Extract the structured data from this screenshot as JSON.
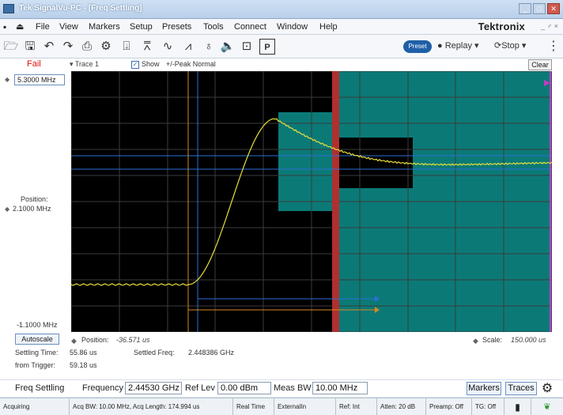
{
  "window": {
    "title": "Tek SignalVu-PC - [Freq Settling]",
    "controls": [
      "_",
      "□",
      "✕"
    ]
  },
  "menu": {
    "items": [
      "File",
      "View",
      "Markers",
      "Setup",
      "Presets",
      "Tools",
      "Connect",
      "Window",
      "Help"
    ],
    "brand": "Tektronix",
    "brand_controls": "_ ♂ ×"
  },
  "toolbar": {
    "icons": [
      "open-icon",
      "save-icon",
      "undo-icon",
      "redo-icon",
      "print-icon",
      "settings-icon",
      "marker-icon",
      "peak-icon",
      "trace-icon",
      "spectrum-icon",
      "color-icon",
      "audio-icon",
      "record-icon",
      "preset-panel-icon"
    ],
    "preset_label": "Preset",
    "replay_label": "● Replay ▾",
    "stop_label": "⟳Stop ▾",
    "more": "⋮"
  },
  "trace_bar": {
    "status": "Fail",
    "trace_select": "▾ Trace 1",
    "show_checked": "✓",
    "show_label": "Show",
    "detection": "+/-Peak Normal",
    "clear_label": "Clear"
  },
  "axis": {
    "top_value": "5.3000 MHz",
    "position_label": "Position:",
    "position_value": "2.1000 MHz",
    "bottom_value": "-1.1000 MHz"
  },
  "colors": {
    "mask_teal": "#0b7a77",
    "mask_dark": "#000000",
    "trace": "#e8df3a",
    "settle_bar": "#b0302f",
    "marker_blue": "#2d6fd6",
    "marker_orange": "#d98a1a",
    "marker_magenta": "#c33cc3"
  },
  "under_plot": {
    "autoscale_label": "Autoscale",
    "h_position_label": "Position:",
    "h_position_value": "-36.571 us",
    "scale_label": "Scale:",
    "scale_value": "150.000 us",
    "settling_time_label": "Settling Time:",
    "settling_time_value": "55.86 us",
    "settled_freq_label": "Settled Freq:",
    "settled_freq_value": "2.448386 GHz",
    "from_trigger_label": "from Trigger:",
    "from_trigger_value": "59.18 us"
  },
  "settings": {
    "title": "Freq Settling",
    "frequency_label": "Frequency",
    "frequency_value": "2.44530 GHz",
    "ref_lev_label": "Ref Lev",
    "ref_lev_value": "0.00 dBm",
    "meas_bw_label": "Meas BW",
    "meas_bw_value": "10.00 MHz",
    "markers_label": "Markers",
    "traces_label": "Traces"
  },
  "status": {
    "cells": [
      "Acquiring",
      "Acq BW: 10.00 MHz, Acq Length: 174.994 us",
      "Real Time",
      "ExternalIn",
      "Ref: Int",
      "Atten: 20 dB",
      "Preamp: Off",
      "TG: Off"
    ]
  }
}
